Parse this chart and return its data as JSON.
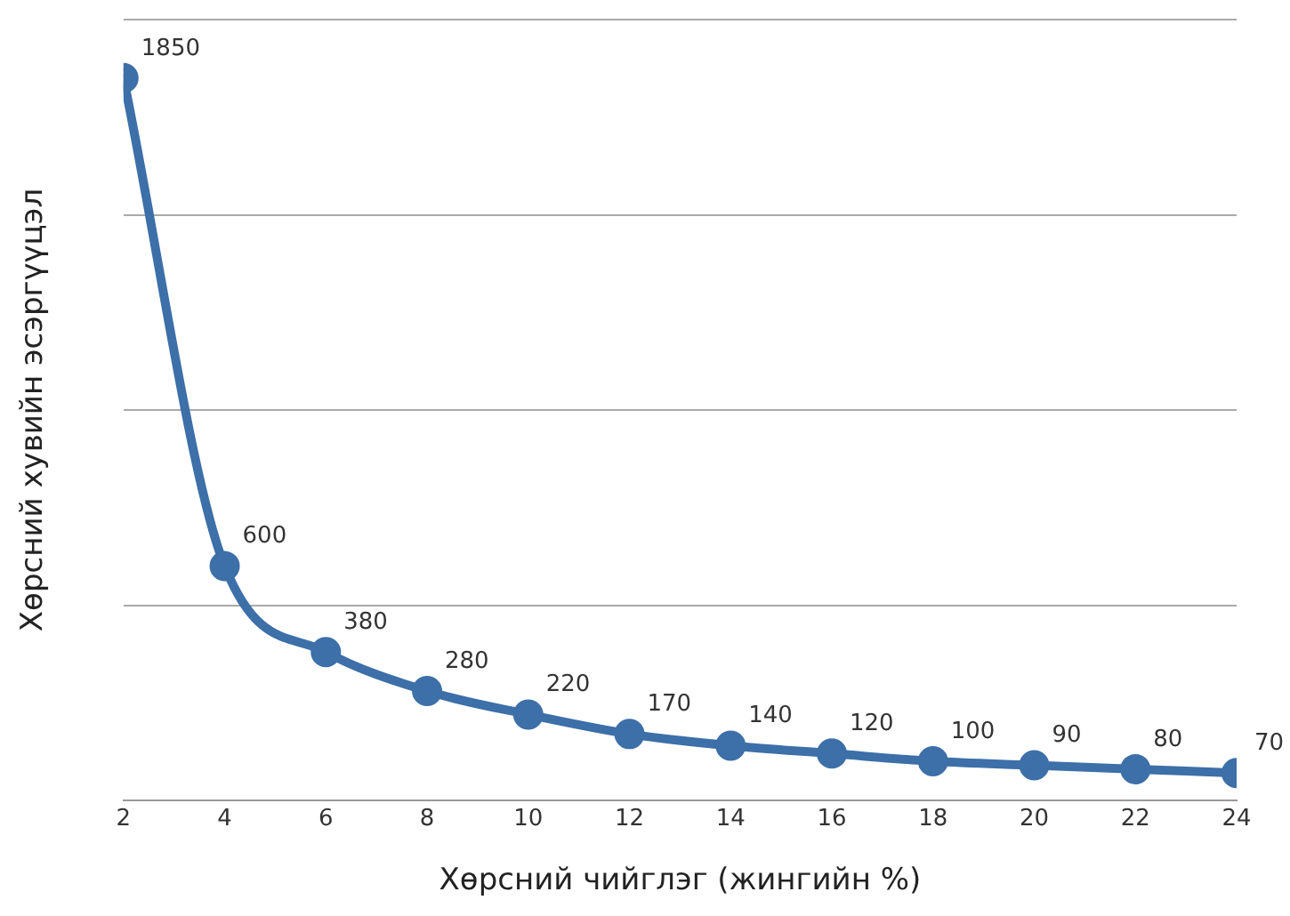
{
  "chart_data": {
    "type": "line",
    "xlabel": "Хөрсний чийглэг (жингийн %)",
    "ylabel": "Хөрсний хувийн эсэргүүцэл",
    "x": [
      2,
      4,
      6,
      8,
      10,
      12,
      14,
      16,
      18,
      20,
      22,
      24
    ],
    "series": [
      {
        "color": "#3d6fa8",
        "values": [
          1850,
          600,
          380,
          280,
          220,
          170,
          140,
          120,
          100,
          90,
          80,
          70
        ]
      }
    ],
    "xlim": [
      2,
      24
    ],
    "xticks": [
      2,
      4,
      6,
      8,
      10,
      12,
      14,
      16,
      18,
      20,
      22,
      24
    ],
    "ylim": [
      0,
      2000
    ],
    "yticks": [
      {
        "value": 0,
        "label": null
      },
      {
        "value": 500,
        "label": null
      },
      {
        "value": 1000,
        "label": null
      },
      {
        "value": 1500,
        "label": null
      },
      {
        "value": 2000,
        "label": null
      }
    ],
    "tick_labels": "x",
    "grid": "y",
    "marker": "circle",
    "line_style": "solid",
    "data_labels": true,
    "legend": false
  }
}
